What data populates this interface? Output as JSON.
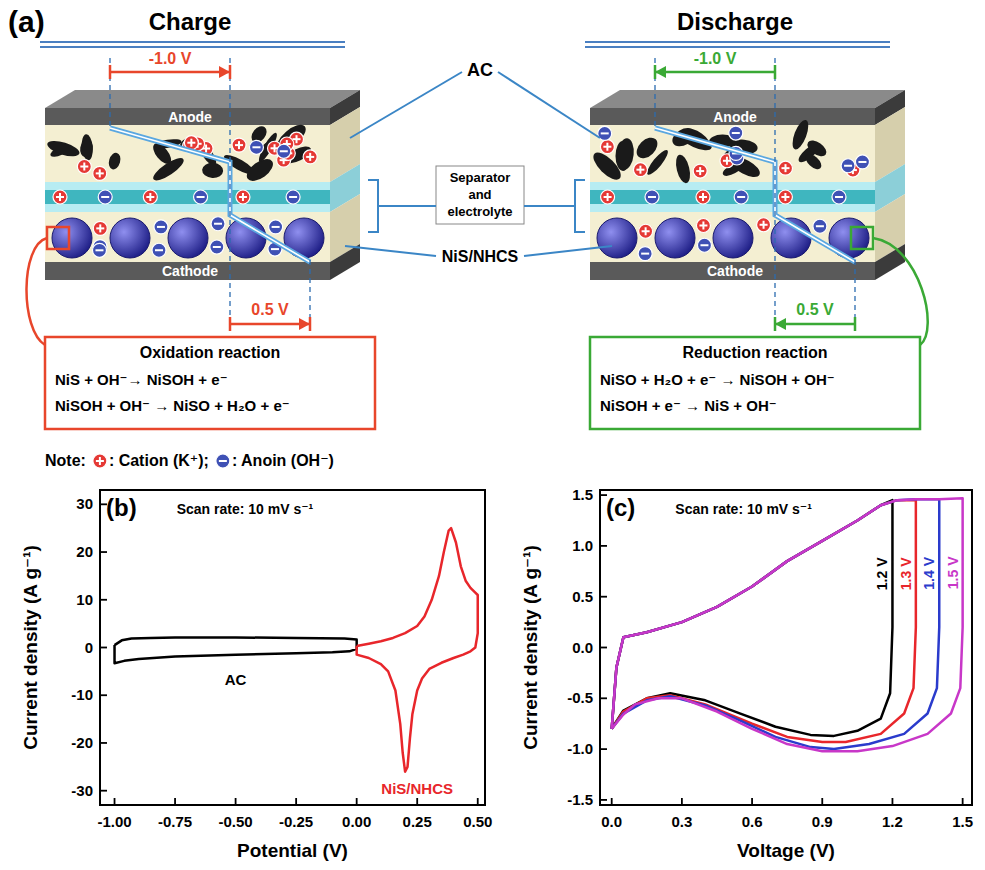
{
  "diagram": {
    "panel_label": "(a)",
    "panels": [
      {
        "title": "Charge",
        "anode": "Anode",
        "cathode": "Cathode",
        "anode_voltage": "-1.0 V",
        "cathode_voltage": "0.5 V",
        "reaction_title": "Oxidation reaction",
        "equations": [
          "NiS + OH⁻→ NiSOH + e⁻",
          "NiSOH + OH⁻ → NiSO + H₂O + e⁻"
        ]
      },
      {
        "title": "Discharge",
        "anode": "Anode",
        "cathode": "Cathode",
        "anode_voltage": "-1.0 V",
        "cathode_voltage": "0.5 V",
        "reaction_title": "Reduction reaction",
        "equations": [
          "NiSO + H₂O + e⁻ → NiSOH + OH⁻",
          "NiSOH + e⁻ → NiS + OH⁻"
        ]
      }
    ],
    "labels": {
      "ac": "AC",
      "separator": "Separator and electrolyte",
      "active": "NiS/NHCS"
    },
    "note": {
      "title": "Note:",
      "cation": ": Cation (K⁺);",
      "anion": ": Anoin (OH⁻)"
    }
  },
  "chart_data": [
    {
      "type": "line",
      "panel_label": "(b)",
      "annotation": "Scan rate: 10 mV s⁻¹",
      "x_label": "Potential (V)",
      "y_label": "Current density (A g⁻¹)",
      "xlim": [
        -1.06,
        0.53
      ],
      "ylim": [
        -33,
        33
      ],
      "xticks": [
        {
          "value": -1,
          "label": "-1.00"
        },
        -0.75,
        {
          "value": -0.5,
          "label": "-0.50"
        },
        -0.25,
        {
          "value": 0,
          "label": "0.00"
        },
        0.25,
        {
          "value": 0.5,
          "label": "0.50"
        }
      ],
      "yticks": [
        -30,
        -20,
        -10,
        0,
        10,
        20,
        30
      ],
      "series": [
        {
          "name": "AC",
          "color": "#000000",
          "x": [
            -1.0,
            -0.97,
            -0.93,
            -0.85,
            -0.75,
            -0.5,
            -0.25,
            -0.05,
            0.0,
            0.0,
            -0.03,
            -0.1,
            -0.25,
            -0.5,
            -0.75,
            -0.9,
            -0.96,
            -1.0,
            -1.0
          ],
          "values": [
            0.5,
            1.5,
            1.9,
            2.0,
            2.1,
            2.1,
            2.0,
            1.9,
            1.7,
            -0.3,
            -0.8,
            -1.0,
            -1.2,
            -1.5,
            -1.9,
            -2.4,
            -2.8,
            -3.3,
            0.5
          ]
        },
        {
          "name": "NiS/NHCS",
          "color": "#e8262b",
          "x": [
            0.0,
            0.05,
            0.1,
            0.15,
            0.2,
            0.25,
            0.28,
            0.31,
            0.34,
            0.36,
            0.38,
            0.39,
            0.41,
            0.43,
            0.45,
            0.47,
            0.49,
            0.5,
            0.5,
            0.49,
            0.47,
            0.44,
            0.4,
            0.35,
            0.3,
            0.27,
            0.25,
            0.23,
            0.22,
            0.21,
            0.2,
            0.19,
            0.18,
            0.16,
            0.13,
            0.1,
            0.05,
            0.0,
            0.0
          ],
          "values": [
            0.3,
            0.8,
            1.3,
            2.0,
            3.0,
            4.5,
            6.5,
            10,
            15,
            20,
            24.5,
            25,
            22,
            17,
            14,
            12.5,
            11.5,
            11,
            3,
            0,
            -0.8,
            -1.5,
            -2.2,
            -3.2,
            -4.5,
            -6.5,
            -9,
            -14,
            -19,
            -25,
            -26,
            -22,
            -16,
            -9,
            -5,
            -3.5,
            -2.2,
            -1.5,
            0.3
          ]
        }
      ]
    },
    {
      "type": "line",
      "panel_label": "(c)",
      "annotation": "Scan rate: 10 mV s⁻¹",
      "x_label": "Voltage (V)",
      "y_label": "Current density (A g⁻¹)",
      "xlim": [
        -0.05,
        1.54
      ],
      "ylim": [
        -1.55,
        1.55
      ],
      "xticks": [
        {
          "value": 0,
          "label": "0.0"
        },
        0.3,
        0.6,
        0.9,
        1.2,
        1.5
      ],
      "yticks": [
        -1.5,
        {
          "value": -1,
          "label": "-1.0"
        },
        -0.5,
        {
          "value": 0,
          "label": "0.0"
        },
        0.5,
        {
          "value": 1,
          "label": "1.0"
        },
        1.5
      ],
      "series": [
        {
          "name": "1.2 V",
          "color": "#000000",
          "x": [
            0,
            0.02,
            0.05,
            0.15,
            0.3,
            0.45,
            0.6,
            0.75,
            0.9,
            1.05,
            1.15,
            1.2,
            1.2,
            1.19,
            1.15,
            1.05,
            0.95,
            0.85,
            0.7,
            0.55,
            0.4,
            0.25,
            0.15,
            0.05,
            0
          ],
          "values": [
            -0.8,
            -0.2,
            0.1,
            0.15,
            0.25,
            0.4,
            0.6,
            0.85,
            1.05,
            1.25,
            1.4,
            1.45,
            0.2,
            -0.45,
            -0.7,
            -0.82,
            -0.87,
            -0.86,
            -0.78,
            -0.65,
            -0.52,
            -0.45,
            -0.5,
            -0.62,
            -0.8
          ]
        },
        {
          "name": "1.3 V",
          "color": "#e8262b",
          "x": [
            0,
            0.02,
            0.05,
            0.15,
            0.3,
            0.45,
            0.6,
            0.75,
            0.9,
            1.05,
            1.15,
            1.22,
            1.3,
            1.3,
            1.29,
            1.25,
            1.15,
            1.0,
            0.9,
            0.75,
            0.6,
            0.4,
            0.25,
            0.15,
            0.05,
            0
          ],
          "values": [
            -0.8,
            -0.2,
            0.1,
            0.15,
            0.25,
            0.4,
            0.6,
            0.85,
            1.05,
            1.25,
            1.4,
            1.45,
            1.45,
            0.2,
            -0.4,
            -0.65,
            -0.85,
            -0.93,
            -0.93,
            -0.88,
            -0.75,
            -0.56,
            -0.47,
            -0.5,
            -0.63,
            -0.8
          ]
        },
        {
          "name": "1.4 V",
          "color": "#2a3bcc",
          "x": [
            0,
            0.02,
            0.05,
            0.15,
            0.3,
            0.45,
            0.6,
            0.75,
            0.9,
            1.05,
            1.15,
            1.22,
            1.3,
            1.4,
            1.4,
            1.39,
            1.35,
            1.25,
            1.1,
            0.95,
            0.85,
            0.7,
            0.55,
            0.4,
            0.25,
            0.15,
            0.05,
            0
          ],
          "values": [
            -0.8,
            -0.2,
            0.1,
            0.15,
            0.25,
            0.4,
            0.6,
            0.85,
            1.05,
            1.25,
            1.4,
            1.45,
            1.46,
            1.46,
            0.2,
            -0.4,
            -0.65,
            -0.85,
            -0.95,
            -1.0,
            -0.98,
            -0.88,
            -0.72,
            -0.57,
            -0.48,
            -0.52,
            -0.65,
            -0.8
          ]
        },
        {
          "name": "1.5 V",
          "color": "#c837c8",
          "x": [
            0,
            0.02,
            0.05,
            0.15,
            0.3,
            0.45,
            0.6,
            0.75,
            0.9,
            1.05,
            1.15,
            1.22,
            1.3,
            1.4,
            1.5,
            1.5,
            1.49,
            1.45,
            1.35,
            1.2,
            1.05,
            0.9,
            0.75,
            0.6,
            0.45,
            0.3,
            0.2,
            0.1,
            0.05,
            0
          ],
          "values": [
            -0.8,
            -0.2,
            0.1,
            0.15,
            0.25,
            0.4,
            0.6,
            0.85,
            1.05,
            1.25,
            1.4,
            1.45,
            1.46,
            1.46,
            1.47,
            0.2,
            -0.4,
            -0.65,
            -0.85,
            -0.97,
            -1.02,
            -1.02,
            -0.95,
            -0.8,
            -0.63,
            -0.5,
            -0.5,
            -0.56,
            -0.66,
            -0.8
          ]
        }
      ]
    }
  ]
}
